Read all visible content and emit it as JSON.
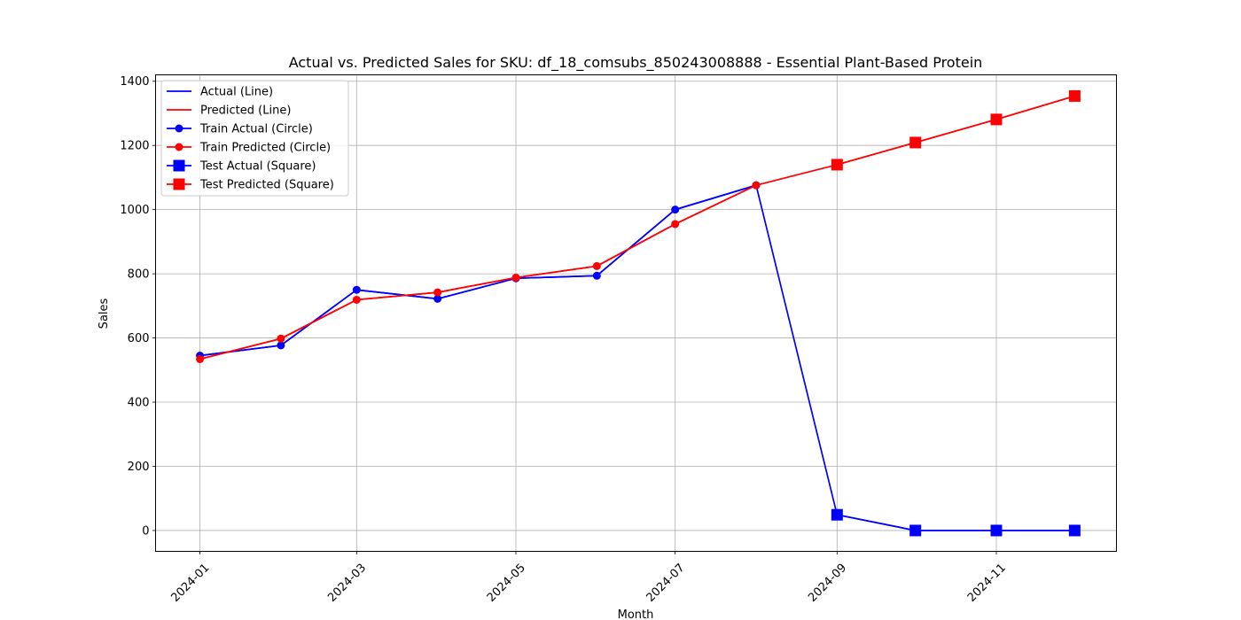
{
  "chart_data": {
    "type": "line",
    "title": "Actual vs. Predicted Sales for SKU: df_18_comsubs_850243008888 - Essential Plant-Based Protein",
    "xlabel": "Month",
    "ylabel": "Sales",
    "x_range": [
      "2023-12-15",
      "2024-12-17"
    ],
    "ylim": [
      -65,
      1420
    ],
    "yticks": [
      0,
      200,
      400,
      600,
      800,
      1000,
      1200,
      1400
    ],
    "xticks": [
      "2024-01",
      "2024-03",
      "2024-05",
      "2024-07",
      "2024-09",
      "2024-11"
    ],
    "grid": true,
    "legend_position": "top-left",
    "colors": {
      "actual": "#0000ff",
      "predicted": "#ff0000",
      "grid": "#b0b0b0"
    },
    "series": [
      {
        "name": "Actual (Line)",
        "marker": "none",
        "color": "#0000ff",
        "x": [
          "2024-01-01",
          "2024-02-01",
          "2024-03-01",
          "2024-04-01",
          "2024-05-01",
          "2024-06-01",
          "2024-07-01",
          "2024-08-01",
          "2024-09-01",
          "2024-10-01",
          "2024-11-01",
          "2024-12-01"
        ],
        "values": [
          545,
          577,
          750,
          722,
          786,
          794,
          1000,
          1076,
          49,
          0,
          0,
          0
        ]
      },
      {
        "name": "Predicted (Line)",
        "marker": "none",
        "color": "#ff0000",
        "x": [
          "2024-01-01",
          "2024-02-01",
          "2024-03-01",
          "2024-04-01",
          "2024-05-01",
          "2024-06-01",
          "2024-07-01",
          "2024-08-01",
          "2024-09-01",
          "2024-10-01",
          "2024-11-01",
          "2024-12-01"
        ],
        "values": [
          534,
          598,
          719,
          742,
          788,
          824,
          955,
          1076,
          1140,
          1209,
          1281,
          1354
        ]
      },
      {
        "name": "Train Actual (Circle)",
        "marker": "circle",
        "color": "#0000ff",
        "x": [
          "2024-01-01",
          "2024-02-01",
          "2024-03-01",
          "2024-04-01",
          "2024-05-01",
          "2024-06-01",
          "2024-07-01",
          "2024-08-01"
        ],
        "values": [
          545,
          577,
          750,
          722,
          786,
          794,
          1000,
          1076
        ]
      },
      {
        "name": "Train Predicted (Circle)",
        "marker": "circle",
        "color": "#ff0000",
        "x": [
          "2024-01-01",
          "2024-02-01",
          "2024-03-01",
          "2024-04-01",
          "2024-05-01",
          "2024-06-01",
          "2024-07-01",
          "2024-08-01"
        ],
        "values": [
          534,
          598,
          719,
          742,
          788,
          824,
          955,
          1076
        ]
      },
      {
        "name": "Test Actual (Square)",
        "marker": "square",
        "color": "#0000ff",
        "x": [
          "2024-09-01",
          "2024-10-01",
          "2024-11-01",
          "2024-12-01"
        ],
        "values": [
          49,
          0,
          0,
          0
        ]
      },
      {
        "name": "Test Predicted (Square)",
        "marker": "square",
        "color": "#ff0000",
        "x": [
          "2024-09-01",
          "2024-10-01",
          "2024-11-01",
          "2024-12-01"
        ],
        "values": [
          1140,
          1209,
          1281,
          1354
        ]
      }
    ]
  }
}
